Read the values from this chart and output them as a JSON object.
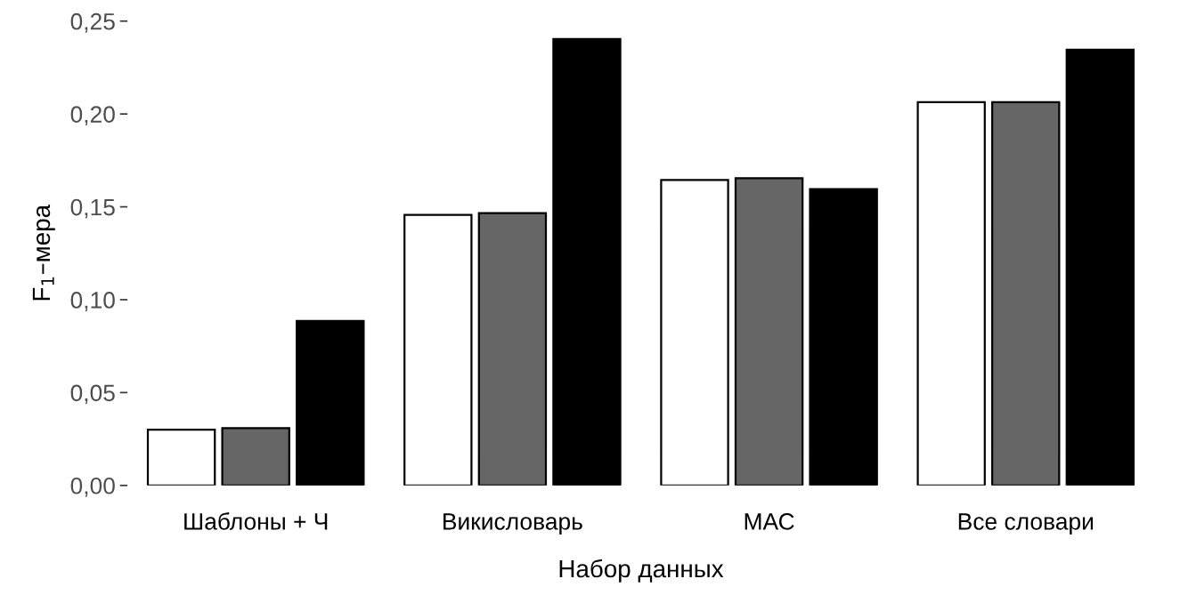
{
  "chart_data": {
    "type": "bar",
    "xlabel": "Набор данных",
    "ylabel": "F$_{1}$–мера",
    "categories": [
      "Шаблоны + Ч",
      "Викисловарь",
      "МАС",
      "Все словари"
    ],
    "series": [
      {
        "color": "#ffffff",
        "values": [
          0.03,
          0.1457,
          0.1644,
          0.2063
        ]
      },
      {
        "color": "#666666",
        "values": [
          0.0308,
          0.1466,
          0.1654,
          0.2063
        ]
      },
      {
        "color": "#000000",
        "values": [
          0.0885,
          0.2404,
          0.1596,
          0.2346
        ]
      }
    ],
    "ylim": [
      0,
      0.25
    ],
    "yticks": [
      {
        "value": 0,
        "label": "0,00"
      },
      {
        "value": 0.05,
        "label": "0,05"
      },
      {
        "value": 0.1,
        "label": "0,10"
      },
      {
        "value": 0.15,
        "label": "0,15"
      },
      {
        "value": 0.2,
        "label": "0,20"
      },
      {
        "value": 0.25,
        "label": "0,25"
      }
    ],
    "grid": false,
    "legend": false
  }
}
